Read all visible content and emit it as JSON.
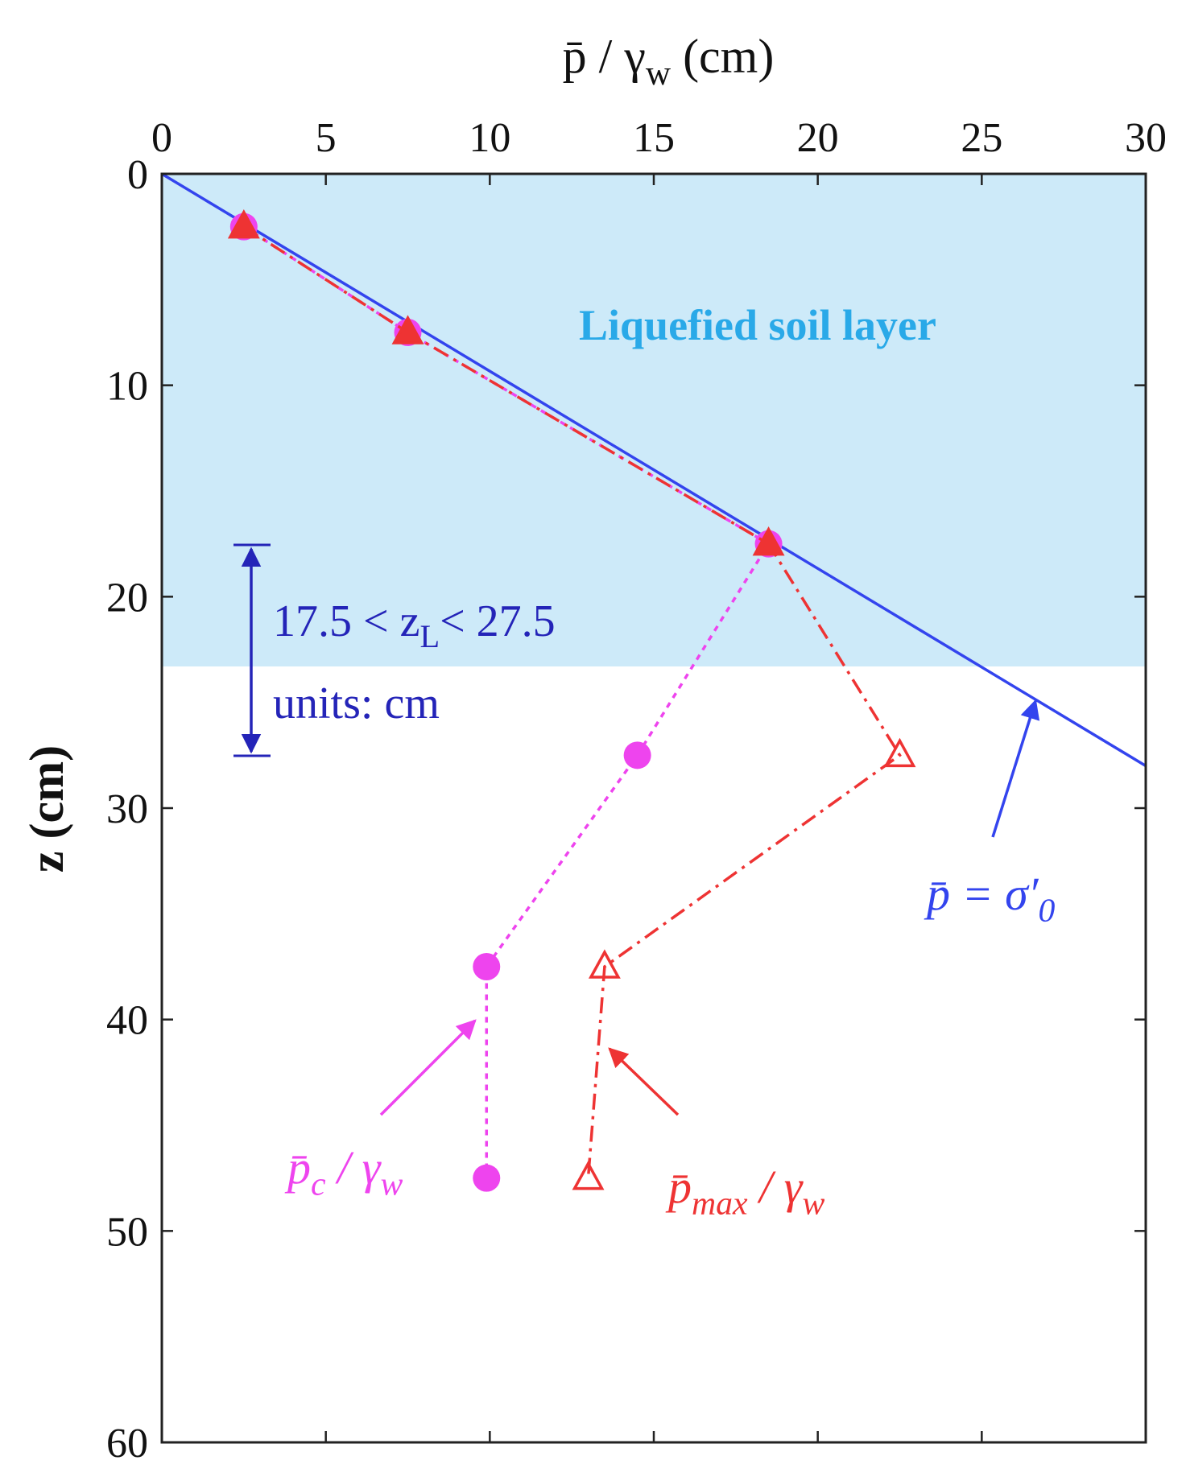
{
  "chart_data": {
    "type": "line",
    "x_label": [
      "p̄ / γ",
      "w",
      " (cm)"
    ],
    "y_label": "z (cm)",
    "xlim": [
      0,
      30
    ],
    "xticks": [
      0,
      5,
      10,
      15,
      20,
      25,
      30
    ],
    "ylim": [
      0,
      60
    ],
    "yticks": [
      0,
      10,
      20,
      30,
      40,
      50,
      60
    ],
    "y_inverted": true,
    "layer": {
      "label": "Liquefied soil layer",
      "depth": 23.3,
      "color": "#cdeaf9",
      "label_color": "#29a9e8"
    },
    "range_note": {
      "text": [
        "17.5 < z",
        "L",
        "< 27.5"
      ],
      "units": "units: cm",
      "color": "#2424b8"
    },
    "series": [
      {
        "name": [
          "p̄ = σ′",
          "0"
        ],
        "color": "#3344ee",
        "style": "solid",
        "marker": "none",
        "x": [
          0,
          30
        ],
        "y": [
          0,
          28
        ]
      },
      {
        "name": [
          "p̄",
          "c",
          " / γ",
          "w"
        ],
        "color": "#ee44ee",
        "style": "dotted",
        "marker": "circle",
        "x": [
          2.5,
          7.5,
          18.5,
          14.5,
          9.9,
          9.9
        ],
        "y": [
          2.5,
          7.5,
          17.5,
          27.5,
          37.5,
          47.5
        ]
      },
      {
        "name": [
          "p̄",
          "max",
          " / γ",
          "w"
        ],
        "color": "#ee3333",
        "style": "dashdot",
        "marker": "triangle",
        "x": [
          2.5,
          7.5,
          18.5,
          22.5,
          13.5,
          13
        ],
        "y": [
          2.5,
          7.5,
          17.5,
          27.5,
          37.5,
          47.5
        ]
      }
    ]
  }
}
